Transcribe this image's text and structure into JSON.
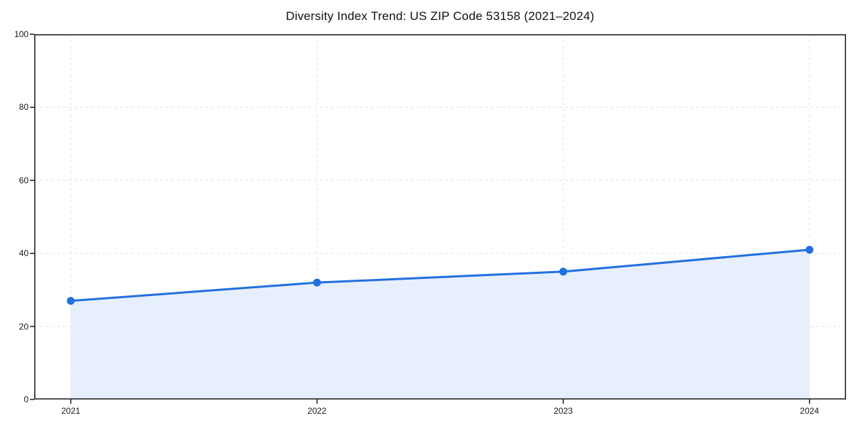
{
  "chart_data": {
    "type": "area",
    "title": "Diversity Index Trend: US ZIP Code 53158 (2021–2024)",
    "series_name": "Diversity Index",
    "categories": [
      "2021",
      "2022",
      "2023",
      "2024"
    ],
    "values": [
      27,
      32,
      35,
      41
    ],
    "xlabel": "",
    "ylabel": "",
    "ylim": [
      0,
      100
    ],
    "yticks": [
      0,
      20,
      40,
      60,
      80,
      100
    ],
    "grid": true,
    "grid_style": "dashed",
    "legend": false,
    "x_inset_frac": 0.045,
    "colors": {
      "line": "#2270e0",
      "marker": "#2270e0",
      "fill": "#e8effc",
      "grid": "#e3e3e3",
      "axis": "#1a1a1a",
      "text": "#1a1a1a",
      "background": "#ffffff"
    }
  }
}
